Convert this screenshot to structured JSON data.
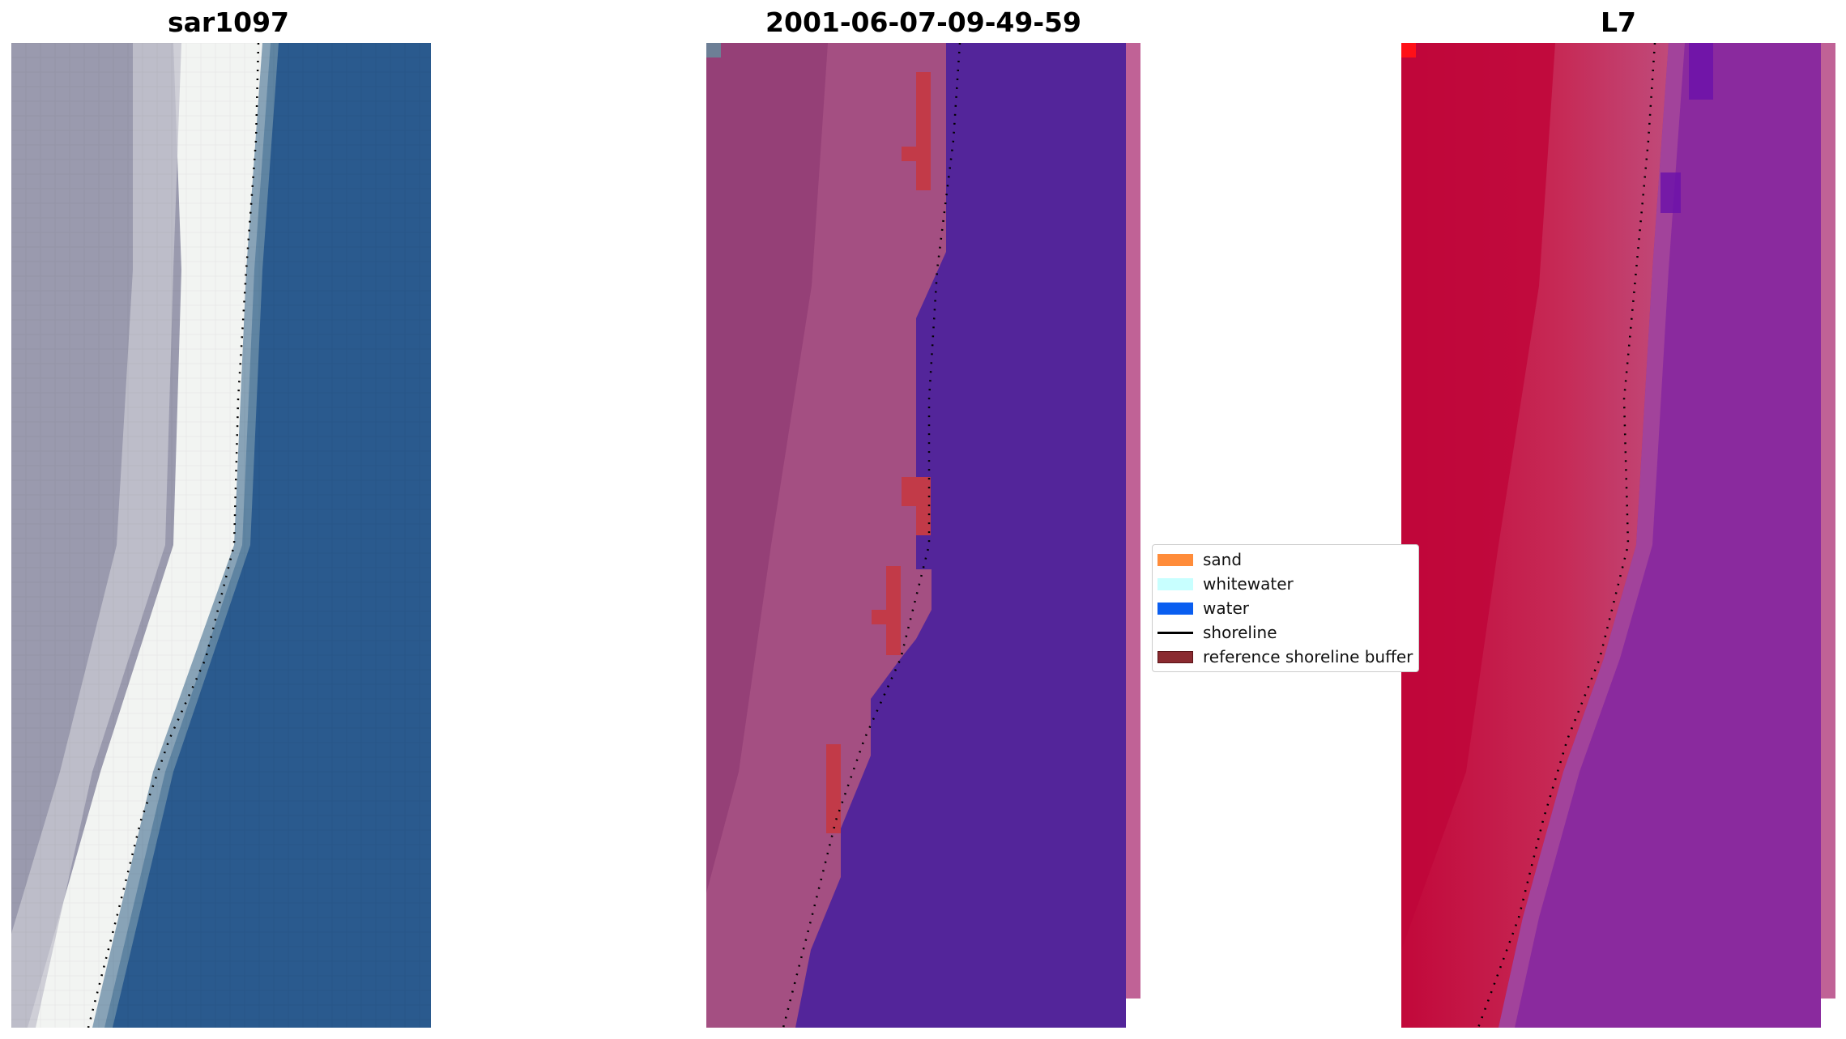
{
  "panels": [
    {
      "title": "sar1097"
    },
    {
      "title": "2001-06-07-09-49-59"
    },
    {
      "title": "L7"
    }
  ],
  "legend": {
    "items": [
      {
        "label": "sand",
        "color": "#ff8c3a"
      },
      {
        "label": "whitewater",
        "color": "#c8ffff"
      },
      {
        "label": "water",
        "color": "#0a5ef0"
      },
      {
        "label": "shoreline",
        "color": "#000000"
      },
      {
        "label": "reference shoreline buffer",
        "color": "#8a2a30"
      }
    ]
  },
  "colors": {
    "rgb_land": "#9a9aae",
    "rgb_beach": "#f4f6f4",
    "rgb_water": "#2a5a8e",
    "class_land": "#a04a80",
    "class_water": "#53259a",
    "class_buffer_hit": "#c03848",
    "ndwi_land": "#c4083a",
    "ndwi_water": "#8a28a0"
  }
}
